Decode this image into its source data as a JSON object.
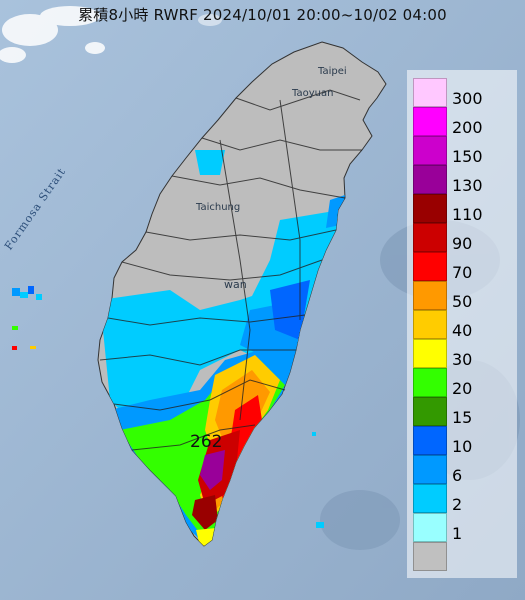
{
  "title": "累積8小時 RWRF 2024/10/01 20:00~10/02 04:00",
  "strait_label": "Formosa Strait",
  "places": {
    "taipei": "Taipei",
    "taoyuan": "Taoyuan",
    "taichung": "Taichung",
    "taiwan": "wan"
  },
  "max_value": "262",
  "legend": {
    "items": [
      {
        "label": "300",
        "color": "#ffc8ff"
      },
      {
        "label": "200",
        "color": "#ff00ff"
      },
      {
        "label": "150",
        "color": "#cc00cc"
      },
      {
        "label": "130",
        "color": "#990099"
      },
      {
        "label": "110",
        "color": "#990000"
      },
      {
        "label": "90",
        "color": "#cc0000"
      },
      {
        "label": "70",
        "color": "#ff0000"
      },
      {
        "label": "50",
        "color": "#ff9900"
      },
      {
        "label": "40",
        "color": "#ffcc00"
      },
      {
        "label": "30",
        "color": "#ffff00"
      },
      {
        "label": "20",
        "color": "#33ff00"
      },
      {
        "label": "15",
        "color": "#339900"
      },
      {
        "label": "10",
        "color": "#0066ff"
      },
      {
        "label": "6",
        "color": "#0099ff"
      },
      {
        "label": "2",
        "color": "#00ccff"
      },
      {
        "label": "1",
        "color": "#99ffff"
      },
      {
        "label": "",
        "color": "#c0c0c0"
      }
    ]
  }
}
